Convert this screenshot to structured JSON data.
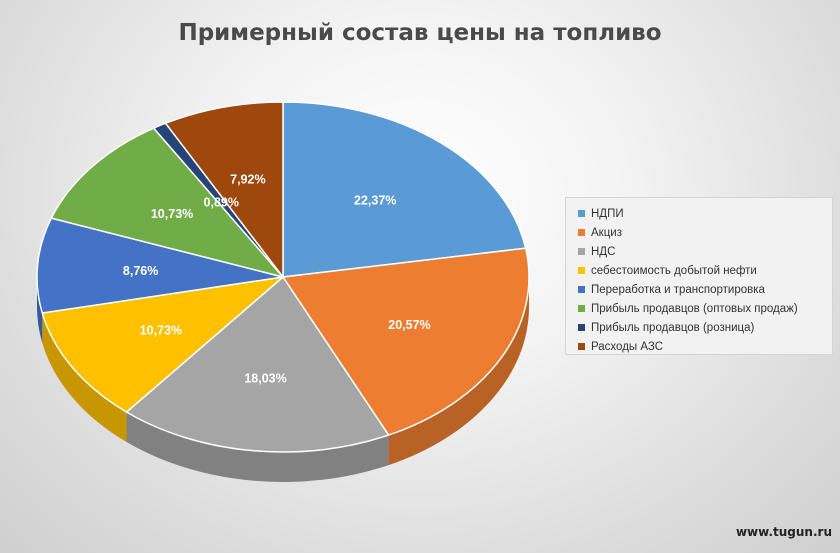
{
  "chart_data": {
    "type": "pie",
    "title": "Примерный состав цены на топливо",
    "categories": [
      "НДПИ",
      "Акциз",
      "НДС",
      "себестоимость добытой нефти",
      "Переработка и транспортировка",
      "Прибыль продавцов  (оптовых продаж)",
      "Прибыль продавцов (розница)",
      "Расходы АЗС"
    ],
    "values": [
      22.37,
      20.57,
      18.03,
      10.73,
      8.76,
      10.73,
      0.89,
      7.92
    ],
    "data_labels": [
      "22,37%",
      "20,57%",
      "18,03%",
      "10,73%",
      "8,76%",
      "10,73%",
      "0,89%",
      "7,92%"
    ],
    "colors": [
      "#5b9bd5",
      "#ed7d31",
      "#a5a5a5",
      "#ffc000",
      "#4472c4",
      "#70ad47",
      "#264478",
      "#9e480e"
    ],
    "legend_position": "right",
    "three_d": true
  },
  "watermark": "www.tugun.ru"
}
